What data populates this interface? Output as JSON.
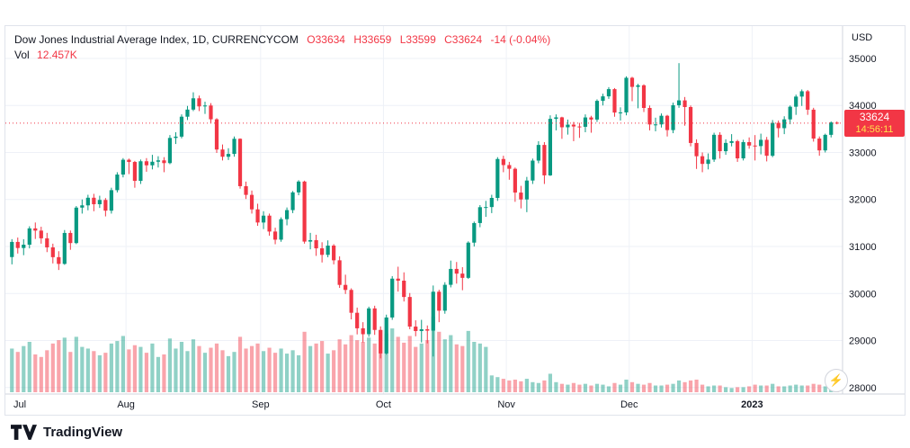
{
  "header": {
    "symbol_title": "Dow Jones Industrial Average Index, 1D, CURRENCYCOM",
    "ohlc": {
      "open_label": "O",
      "open": "33634",
      "high_label": "H",
      "high": "33659",
      "low_label": "L",
      "low": "33599",
      "close_label": "C",
      "close": "33624",
      "change": "-14 (-0.04%)"
    },
    "volume_label": "Vol",
    "volume_value": "12.457K"
  },
  "price_scale": {
    "currency": "USD",
    "ticks": [
      35000,
      34000,
      33000,
      32000,
      31000,
      30000,
      29000,
      28000
    ],
    "last_price": 33624,
    "last_price_label": "33624",
    "countdown": "14:56:11"
  },
  "time_scale": {
    "labels": [
      {
        "text": "Jul",
        "index": 0
      },
      {
        "text": "Aug",
        "index": 20
      },
      {
        "text": "Sep",
        "index": 43
      },
      {
        "text": "Oct",
        "index": 64
      },
      {
        "text": "Nov",
        "index": 85
      },
      {
        "text": "Dec",
        "index": 106
      },
      {
        "text": "2023",
        "index": 127,
        "year": true
      }
    ]
  },
  "footer": {
    "brand": "TradingView"
  },
  "controls": {
    "lightning_icon": "⚡"
  },
  "colors": {
    "up": "#089981",
    "down": "#f23645",
    "volume_up": "rgba(8,153,129,0.45)",
    "volume_down": "rgba(242,54,69,0.45)",
    "grid": "#eef1f7",
    "axis_line": "#d1d4dc",
    "axis_text": "#131722",
    "label_bg": "#f23645",
    "label_text": "#ffffff",
    "countdown_text": "#ffe24c",
    "title_text": "#131722",
    "value_text": "#f23645",
    "price_line": "#f23645",
    "lightning": "#8e24aa"
  },
  "chart_data": {
    "type": "candlestick",
    "title": "Dow Jones Industrial Average Index",
    "interval": "1D",
    "exchange": "CURRENCYCOM",
    "unit": "USD",
    "last_close": 33624,
    "change": -14,
    "change_pct": -0.04,
    "y_axis": {
      "min": 27900,
      "max": 35650,
      "tick_step": 1000,
      "ticks": [
        35000,
        34000,
        33000,
        32000,
        31000,
        30000,
        29000,
        28000
      ]
    },
    "x_axis": {
      "start": "Jul 2022",
      "end": "Jan 2023",
      "month_start_indices": {
        "Jul": 0,
        "Aug": 20,
        "Sep": 43,
        "Oct": 64,
        "Nov": 85,
        "Dec": 106,
        "2023": 127
      }
    },
    "volume_unit": "K",
    "columns": [
      "open",
      "high",
      "low",
      "close",
      "volume_k"
    ],
    "candles": [
      [
        30775,
        31156,
        30620,
        31097,
        52
      ],
      [
        31097,
        31190,
        30850,
        30968,
        48
      ],
      [
        30968,
        31155,
        30815,
        31038,
        55
      ],
      [
        31038,
        31430,
        30960,
        31385,
        60
      ],
      [
        31385,
        31510,
        31160,
        31338,
        45
      ],
      [
        31338,
        31420,
        31060,
        31174,
        42
      ],
      [
        31174,
        31290,
        30880,
        30981,
        50
      ],
      [
        30981,
        31060,
        30640,
        30773,
        58
      ],
      [
        30773,
        30900,
        30500,
        30630,
        62
      ],
      [
        30630,
        31350,
        30610,
        31288,
        65
      ],
      [
        31288,
        31340,
        30930,
        31073,
        48
      ],
      [
        31073,
        31860,
        31050,
        31827,
        66
      ],
      [
        31827,
        32000,
        31700,
        31875,
        54
      ],
      [
        31875,
        32100,
        31770,
        32037,
        52
      ],
      [
        32037,
        32120,
        31750,
        31899,
        49
      ],
      [
        31899,
        32080,
        31820,
        31990,
        44
      ],
      [
        31990,
        32030,
        31640,
        31762,
        47
      ],
      [
        31762,
        32250,
        31700,
        32198,
        58
      ],
      [
        32198,
        32580,
        32150,
        32530,
        61
      ],
      [
        32530,
        32880,
        32470,
        32845,
        67
      ],
      [
        32845,
        32870,
        32540,
        32798,
        51
      ],
      [
        32798,
        32820,
        32250,
        32396,
        56
      ],
      [
        32396,
        32850,
        32330,
        32813,
        54
      ],
      [
        32813,
        32880,
        32590,
        32727,
        47
      ],
      [
        32727,
        32950,
        32640,
        32803,
        58
      ],
      [
        32803,
        32920,
        32680,
        32832,
        42
      ],
      [
        32832,
        32900,
        32580,
        32774,
        45
      ],
      [
        32774,
        33370,
        32750,
        33309,
        64
      ],
      [
        33309,
        33430,
        33180,
        33337,
        52
      ],
      [
        33337,
        33810,
        33300,
        33761,
        60
      ],
      [
        33761,
        33990,
        33690,
        33912,
        49
      ],
      [
        33912,
        34280,
        33880,
        34152,
        63
      ],
      [
        34152,
        34210,
        33880,
        33980,
        55
      ],
      [
        33980,
        34080,
        33820,
        33999,
        47
      ],
      [
        33999,
        34050,
        33620,
        33706,
        53
      ],
      [
        33706,
        33730,
        32990,
        33063,
        58
      ],
      [
        33063,
        33170,
        32830,
        32909,
        50
      ],
      [
        32909,
        33090,
        32840,
        32969,
        43
      ],
      [
        32969,
        33340,
        32910,
        33291,
        48
      ],
      [
        33291,
        33300,
        32230,
        32283,
        66
      ],
      [
        32283,
        32380,
        32010,
        32098,
        52
      ],
      [
        32098,
        32190,
        31700,
        31790,
        55
      ],
      [
        31790,
        31910,
        31440,
        31510,
        58
      ],
      [
        31510,
        31750,
        31370,
        31656,
        49
      ],
      [
        31656,
        31700,
        31230,
        31318,
        53
      ],
      [
        31318,
        31400,
        31048,
        31145,
        47
      ],
      [
        31145,
        31620,
        31100,
        31581,
        52
      ],
      [
        31581,
        31830,
        31450,
        31774,
        46
      ],
      [
        31774,
        32180,
        31710,
        32151,
        50
      ],
      [
        32151,
        32410,
        32090,
        32381,
        44
      ],
      [
        32381,
        32400,
        31060,
        31104,
        72
      ],
      [
        31104,
        31290,
        30940,
        31135,
        55
      ],
      [
        31135,
        31250,
        30800,
        30961,
        58
      ],
      [
        30961,
        31090,
        30660,
        30822,
        61
      ],
      [
        30822,
        31130,
        30770,
        31019,
        46
      ],
      [
        31019,
        31050,
        30620,
        30706,
        50
      ],
      [
        30706,
        30790,
        30120,
        30183,
        63
      ],
      [
        30183,
        30400,
        29990,
        30076,
        57
      ],
      [
        30076,
        30110,
        29450,
        29590,
        68
      ],
      [
        29590,
        29700,
        29130,
        29260,
        62
      ],
      [
        29260,
        29390,
        28960,
        29134,
        60
      ],
      [
        29134,
        29720,
        29080,
        29683,
        65
      ],
      [
        29683,
        29740,
        29120,
        29225,
        58
      ],
      [
        29225,
        29300,
        28620,
        28725,
        74
      ],
      [
        28725,
        29550,
        28700,
        29490,
        70
      ],
      [
        29490,
        30370,
        29440,
        30316,
        76
      ],
      [
        30316,
        30570,
        30040,
        30273,
        66
      ],
      [
        30273,
        30450,
        29830,
        29926,
        59
      ],
      [
        29926,
        30010,
        29240,
        29296,
        67
      ],
      [
        29296,
        29430,
        29090,
        29202,
        54
      ],
      [
        29202,
        29440,
        28960,
        29239,
        58
      ],
      [
        29239,
        29320,
        28940,
        29210,
        62
      ],
      [
        29210,
        30170,
        28660,
        30038,
        90
      ],
      [
        30038,
        30080,
        29390,
        29634,
        72
      ],
      [
        29634,
        30240,
        29570,
        30185,
        63
      ],
      [
        30185,
        30700,
        30130,
        30523,
        68
      ],
      [
        30523,
        30670,
        30210,
        30423,
        57
      ],
      [
        30423,
        30560,
        30070,
        30333,
        55
      ],
      [
        30333,
        31110,
        30310,
        31082,
        73
      ],
      [
        31082,
        31530,
        31000,
        31499,
        60
      ],
      [
        31499,
        31880,
        31410,
        31836,
        58
      ],
      [
        31836,
        31970,
        31630,
        31839,
        54
      ],
      [
        31839,
        32100,
        31710,
        32033,
        20
      ],
      [
        32033,
        32900,
        31970,
        32861,
        18
      ],
      [
        32861,
        32930,
        32580,
        32732,
        16
      ],
      [
        32732,
        32800,
        32420,
        32653,
        14
      ],
      [
        32653,
        32680,
        31950,
        32147,
        15
      ],
      [
        32147,
        32290,
        31810,
        32001,
        13
      ],
      [
        32001,
        32480,
        31730,
        32403,
        16
      ],
      [
        32403,
        32870,
        32330,
        32827,
        12
      ],
      [
        32827,
        33240,
        32770,
        33160,
        11
      ],
      [
        33160,
        33220,
        32330,
        32513,
        14
      ],
      [
        32513,
        33790,
        32500,
        33715,
        22
      ],
      [
        33715,
        33810,
        33470,
        33747,
        12
      ],
      [
        33747,
        33760,
        33290,
        33536,
        10
      ],
      [
        33536,
        33700,
        33380,
        33592,
        9
      ],
      [
        33592,
        33650,
        33240,
        33553,
        11
      ],
      [
        33553,
        33630,
        33310,
        33546,
        9
      ],
      [
        33546,
        33810,
        33430,
        33745,
        10
      ],
      [
        33745,
        33780,
        33420,
        33700,
        8
      ],
      [
        33700,
        34130,
        33650,
        34098,
        10
      ],
      [
        34098,
        34250,
        34000,
        34194,
        9
      ],
      [
        34194,
        34390,
        34140,
        34347,
        7
      ],
      [
        34347,
        34370,
        33760,
        33849,
        11
      ],
      [
        33849,
        33960,
        33680,
        33852,
        9
      ],
      [
        33852,
        34620,
        33790,
        34589,
        15
      ],
      [
        34589,
        34610,
        34090,
        34395,
        12
      ],
      [
        34395,
        34460,
        33940,
        34429,
        10
      ],
      [
        34429,
        34450,
        33860,
        33947,
        9
      ],
      [
        33947,
        34000,
        33470,
        33596,
        11
      ],
      [
        33596,
        33740,
        33450,
        33597,
        8
      ],
      [
        33597,
        33830,
        33530,
        33781,
        8
      ],
      [
        33781,
        33800,
        33340,
        33476,
        9
      ],
      [
        33476,
        34060,
        33410,
        34005,
        10
      ],
      [
        34005,
        34900,
        33950,
        34108,
        14
      ],
      [
        34108,
        34180,
        33570,
        33966,
        12
      ],
      [
        33966,
        34000,
        33130,
        33202,
        14
      ],
      [
        33202,
        33280,
        32650,
        32920,
        15
      ],
      [
        32920,
        33000,
        32580,
        32757,
        9
      ],
      [
        32757,
        32980,
        32640,
        32849,
        7
      ],
      [
        32849,
        33420,
        32800,
        33376,
        8
      ],
      [
        33376,
        33430,
        32870,
        33027,
        8
      ],
      [
        33027,
        33280,
        32950,
        33203,
        6
      ],
      [
        33203,
        33390,
        33130,
        33241,
        5
      ],
      [
        33241,
        33270,
        32800,
        32875,
        6
      ],
      [
        32875,
        33270,
        32830,
        33220,
        6
      ],
      [
        33220,
        33320,
        33080,
        33147,
        7
      ],
      [
        33147,
        33370,
        32830,
        33136,
        9
      ],
      [
        33136,
        33400,
        32960,
        33269,
        8
      ],
      [
        33269,
        33330,
        32810,
        32930,
        8
      ],
      [
        32930,
        33690,
        32900,
        33630,
        10
      ],
      [
        33630,
        33680,
        33320,
        33517,
        7
      ],
      [
        33517,
        33770,
        33390,
        33704,
        7
      ],
      [
        33704,
        34000,
        33600,
        33973,
        8
      ],
      [
        33973,
        34230,
        33800,
        34189,
        9
      ],
      [
        34189,
        34340,
        33990,
        34302,
        8
      ],
      [
        34302,
        34330,
        33800,
        33910,
        8
      ],
      [
        33910,
        33950,
        33230,
        33296,
        10
      ],
      [
        33296,
        33340,
        32930,
        33044,
        9
      ],
      [
        33044,
        33400,
        33000,
        33375,
        7
      ],
      [
        33375,
        33660,
        33320,
        33638,
        7
      ],
      [
        33634,
        33659,
        33599,
        33624,
        12.457
      ]
    ]
  }
}
